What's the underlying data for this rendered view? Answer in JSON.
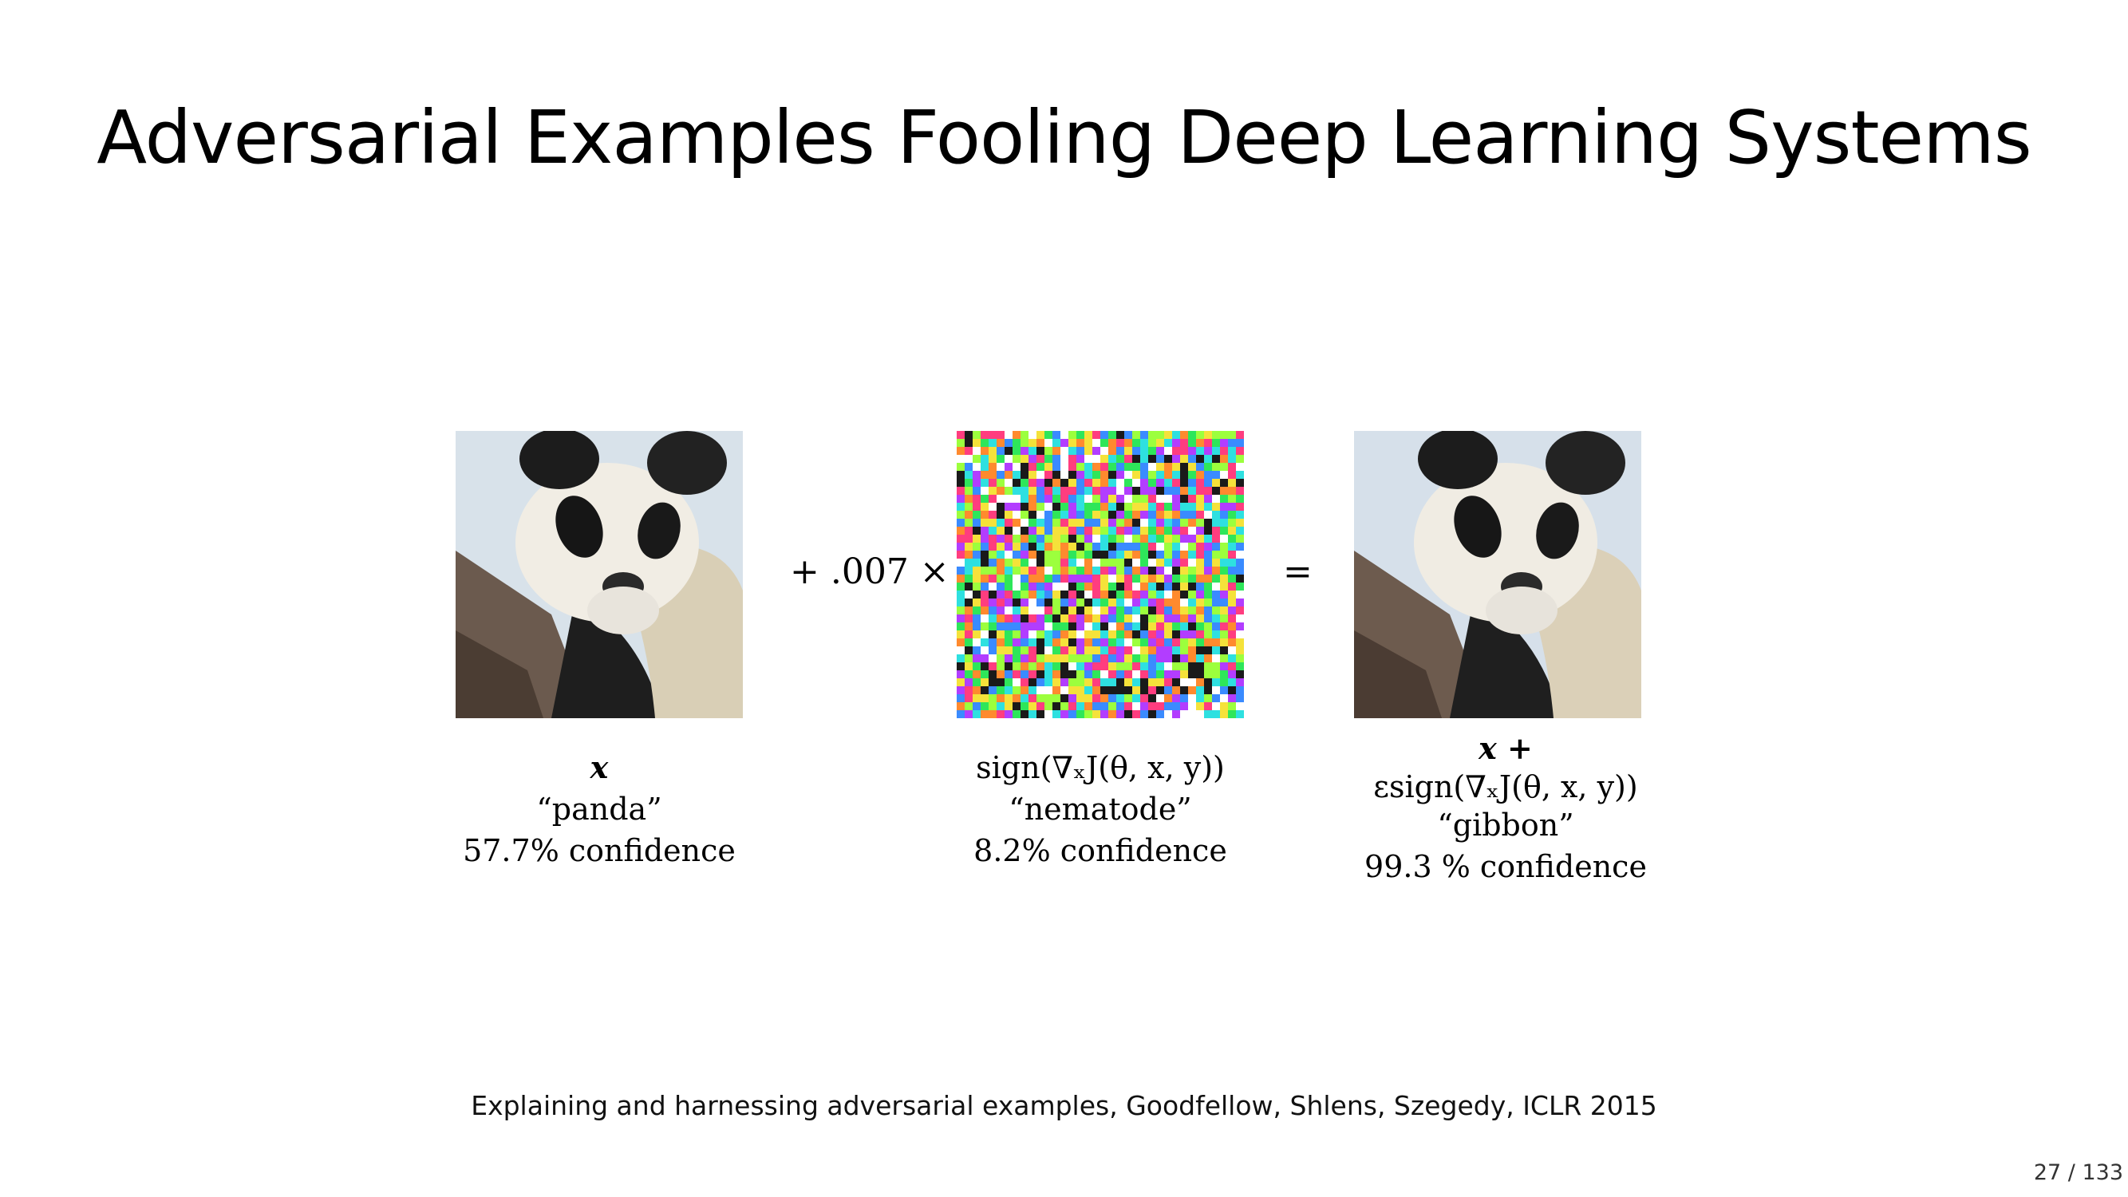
{
  "slide": {
    "title": "Adversarial Examples Fooling Deep Learning Systems",
    "citation": "Explaining and harnessing adversarial examples, Goodfellow, Shlens, Szegedy, ICLR 2015",
    "page_number": "27 / 133"
  },
  "figure": {
    "operator_plus": "+ .007 ×",
    "operator_equals": "=",
    "panels": [
      {
        "math_line1": "x",
        "label": "“panda”",
        "confidence": "57.7% confidence"
      },
      {
        "math_line1": "sign(∇ₓJ(θ, x, y))",
        "label": "“nematode”",
        "confidence": "8.2% confidence"
      },
      {
        "math_line1": "x +",
        "math_line2": "εsign(∇ₓJ(θ, x, y))",
        "label": "“gibbon”",
        "confidence": "99.3 % confidence"
      }
    ]
  }
}
